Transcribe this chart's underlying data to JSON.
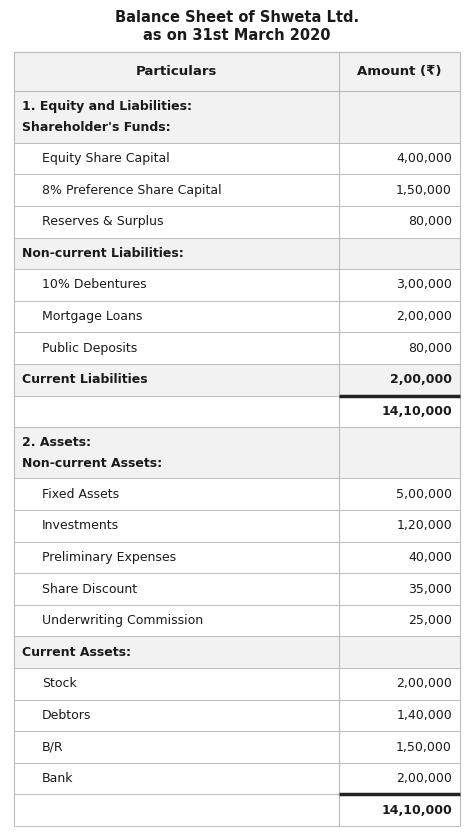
{
  "title_line1": "Balance Sheet of Shweta Ltd.",
  "title_line2": "as on 31st March 2020",
  "col_headers": [
    "Particulars",
    "Amount (₹)"
  ],
  "rows": [
    {
      "text": "1. Equity and Liabilities:\nShareholder's Funds:",
      "amount": "",
      "bold": true,
      "indent": false,
      "section_bg": true,
      "total": false
    },
    {
      "text": "Equity Share Capital",
      "amount": "4,00,000",
      "bold": false,
      "indent": true,
      "section_bg": false,
      "total": false
    },
    {
      "text": "8% Preference Share Capital",
      "amount": "1,50,000",
      "bold": false,
      "indent": true,
      "section_bg": false,
      "total": false
    },
    {
      "text": "Reserves & Surplus",
      "amount": "80,000",
      "bold": false,
      "indent": true,
      "section_bg": false,
      "total": false
    },
    {
      "text": "Non-current Liabilities:",
      "amount": "",
      "bold": true,
      "indent": false,
      "section_bg": true,
      "total": false
    },
    {
      "text": "10% Debentures",
      "amount": "3,00,000",
      "bold": false,
      "indent": true,
      "section_bg": false,
      "total": false
    },
    {
      "text": "Mortgage Loans",
      "amount": "2,00,000",
      "bold": false,
      "indent": true,
      "section_bg": false,
      "total": false
    },
    {
      "text": "Public Deposits",
      "amount": "80,000",
      "bold": false,
      "indent": true,
      "section_bg": false,
      "total": false
    },
    {
      "text": "Current Liabilities",
      "amount": "2,00,000",
      "bold": true,
      "indent": false,
      "section_bg": true,
      "total": false
    },
    {
      "text": "",
      "amount": "14,10,000",
      "bold": true,
      "indent": false,
      "section_bg": false,
      "total": true
    },
    {
      "text": "2. Assets:\nNon-current Assets:",
      "amount": "",
      "bold": true,
      "indent": false,
      "section_bg": true,
      "total": false
    },
    {
      "text": "Fixed Assets",
      "amount": "5,00,000",
      "bold": false,
      "indent": true,
      "section_bg": false,
      "total": false
    },
    {
      "text": "Investments",
      "amount": "1,20,000",
      "bold": false,
      "indent": true,
      "section_bg": false,
      "total": false
    },
    {
      "text": "Preliminary Expenses",
      "amount": "40,000",
      "bold": false,
      "indent": true,
      "section_bg": false,
      "total": false
    },
    {
      "text": "Share Discount",
      "amount": "35,000",
      "bold": false,
      "indent": true,
      "section_bg": false,
      "total": false
    },
    {
      "text": "Underwriting Commission",
      "amount": "25,000",
      "bold": false,
      "indent": true,
      "section_bg": false,
      "total": false
    },
    {
      "text": "Current Assets:",
      "amount": "",
      "bold": true,
      "indent": false,
      "section_bg": true,
      "total": false
    },
    {
      "text": "Stock",
      "amount": "2,00,000",
      "bold": false,
      "indent": true,
      "section_bg": false,
      "total": false
    },
    {
      "text": "Debtors",
      "amount": "1,40,000",
      "bold": false,
      "indent": true,
      "section_bg": false,
      "total": false
    },
    {
      "text": "B/R",
      "amount": "1,50,000",
      "bold": false,
      "indent": true,
      "section_bg": false,
      "total": false
    },
    {
      "text": "Bank",
      "amount": "2,00,000",
      "bold": false,
      "indent": true,
      "section_bg": false,
      "total": false
    },
    {
      "text": "",
      "amount": "14,10,000",
      "bold": true,
      "indent": false,
      "section_bg": false,
      "total": true
    }
  ],
  "bg_color": "#ffffff",
  "section_bg_color": "#f2f2f2",
  "border_color": "#bbbbbb",
  "text_color": "#1a1a1a",
  "title_fontsize": 10.5,
  "header_fontsize": 9.5,
  "body_fontsize": 9.0,
  "fig_width": 4.74,
  "fig_height": 8.36,
  "dpi": 100
}
